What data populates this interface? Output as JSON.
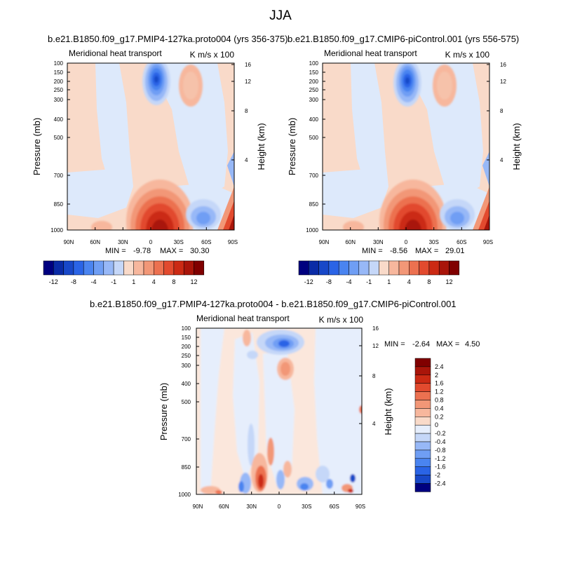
{
  "page": {
    "title": "JJA"
  },
  "chart_data": [
    {
      "type": "contour",
      "title": "b.e21.B1850.f09_g17.PMIP4-127ka.proto004 (yrs 356-375)",
      "left_label": "Meridional heat transport",
      "right_label": "K m/s x 100",
      "ylabel": "Pressure (mb)",
      "y2label": "Height (km)",
      "x_ticks": [
        "90N",
        "60N",
        "30N",
        "0",
        "30S",
        "60S",
        "90S"
      ],
      "y_ticks": [
        "100",
        "150",
        "200",
        "250",
        "300",
        "400",
        "500",
        "700",
        "850",
        "1000"
      ],
      "y2_ticks": [
        "16",
        "12",
        "8",
        "4"
      ],
      "stats": {
        "min_label": "MIN =",
        "min": "-9.78",
        "max_label": "MAX =",
        "max": "30.30"
      },
      "colorbar_labels": [
        "-12",
        "-8",
        "-4",
        "-1",
        "1",
        "4",
        "8",
        "12"
      ]
    },
    {
      "type": "contour",
      "title": "b.e21.B1850.f09_g17.CMIP6-piControl.001 (yrs 556-575)",
      "left_label": "Meridional heat transport",
      "right_label": "K m/s x 100",
      "ylabel": "Pressure (mb)",
      "y2label": "Height (km)",
      "x_ticks": [
        "90N",
        "60N",
        "30N",
        "0",
        "30S",
        "60S",
        "90S"
      ],
      "y_ticks": [
        "100",
        "150",
        "200",
        "250",
        "300",
        "400",
        "500",
        "700",
        "850",
        "1000"
      ],
      "y2_ticks": [
        "16",
        "12",
        "8",
        "4"
      ],
      "stats": {
        "min_label": "MIN =",
        "min": "-8.56",
        "max_label": "MAX =",
        "max": "29.01"
      },
      "colorbar_labels": [
        "-12",
        "-8",
        "-4",
        "-1",
        "1",
        "4",
        "8",
        "12"
      ]
    },
    {
      "type": "contour",
      "title": "b.e21.B1850.f09_g17.PMIP4-127ka.proto004 - b.e21.B1850.f09_g17.CMIP6-piControl.001",
      "left_label": "Meridional heat transport",
      "right_label": "K m/s x 100",
      "ylabel": "Pressure (mb)",
      "y2label": "Height (km)",
      "x_ticks": [
        "90N",
        "60N",
        "30N",
        "0",
        "30S",
        "60S",
        "90S"
      ],
      "y_ticks": [
        "100",
        "150",
        "200",
        "250",
        "300",
        "400",
        "500",
        "700",
        "850",
        "1000"
      ],
      "y2_ticks": [
        "16",
        "12",
        "8",
        "4"
      ],
      "stats": {
        "min_label": "MIN =",
        "min": "-2.64",
        "max_label": "MAX =",
        "max": "4.50"
      },
      "colorbar_labels": [
        "2.4",
        "2",
        "1.6",
        "1.2",
        "0.8",
        "0.4",
        "0.2",
        "0",
        "-0.2",
        "-0.4",
        "-0.8",
        "-1.2",
        "-1.6",
        "-2",
        "-2.4"
      ]
    }
  ],
  "colors": {
    "horizontal_bar": [
      "#00007f",
      "#0a2ba6",
      "#1848c8",
      "#2a64e6",
      "#4a84f0",
      "#6f9ef4",
      "#97b8f7",
      "#c5d7f8",
      "#f9dac9",
      "#f7b79d",
      "#f29777",
      "#ec7150",
      "#e24a2e",
      "#cb2a14",
      "#a9150a",
      "#800000"
    ],
    "vertical_bar_top_to_bottom": [
      "#800000",
      "#a9150a",
      "#cb2a14",
      "#e24a2e",
      "#ec7150",
      "#f29777",
      "#f7b79d",
      "#f9dac9",
      "#e6eefc",
      "#c5d7f8",
      "#97b8f7",
      "#6f9ef4",
      "#4a84f0",
      "#2a64e6",
      "#1848c8",
      "#00007f"
    ]
  }
}
